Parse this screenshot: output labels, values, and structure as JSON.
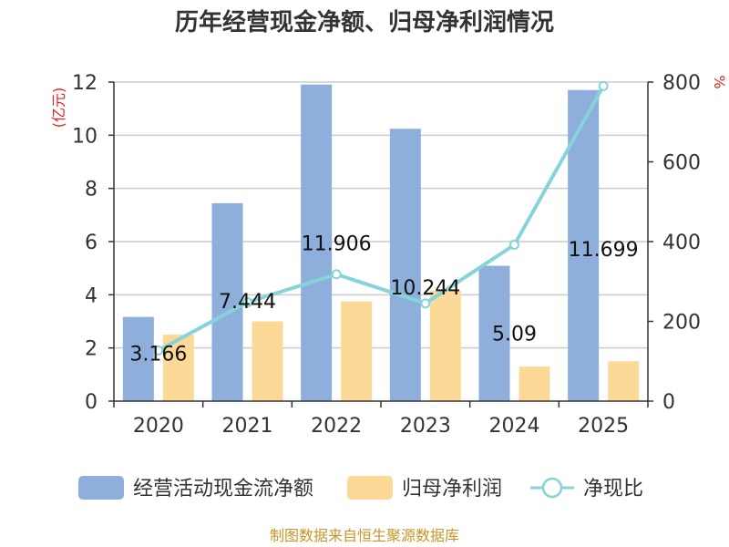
{
  "chart_data": {
    "type": "bar",
    "title": "历年经营现金净额、归母净利润情况",
    "categories": [
      "2020",
      "2021",
      "2022",
      "2023",
      "2024",
      "2025"
    ],
    "y_left": {
      "unit": "(亿元)",
      "ylim": [
        0,
        12
      ],
      "ticks": [
        "0",
        "2",
        "4",
        "6",
        "8",
        "10",
        "12"
      ]
    },
    "y_right": {
      "unit": "%",
      "ylim": [
        0,
        800
      ],
      "ticks": [
        "0",
        "200",
        "400",
        "600",
        "800"
      ]
    },
    "series": [
      {
        "name": "经营活动现金流净额",
        "kind": "bar",
        "axis": "left",
        "color": "#8eaedb",
        "values": [
          3.166,
          7.444,
          11.906,
          10.244,
          5.09,
          11.699
        ],
        "labels": [
          "3.166",
          "7.444",
          "11.906",
          "10.244",
          "5.09",
          "11.699"
        ]
      },
      {
        "name": "归母净利润",
        "kind": "bar",
        "axis": "left",
        "color": "#fdd997",
        "values": [
          2.5,
          3.0,
          3.75,
          4.15,
          1.3,
          1.5
        ]
      },
      {
        "name": "净现比",
        "kind": "line",
        "axis": "right",
        "color": "#86d3da",
        "values": [
          127,
          248,
          318,
          245,
          392,
          790
        ]
      }
    ],
    "grid": true,
    "legend": "bottom-center"
  },
  "source_text": "制图数据来自恒生聚源数据库"
}
